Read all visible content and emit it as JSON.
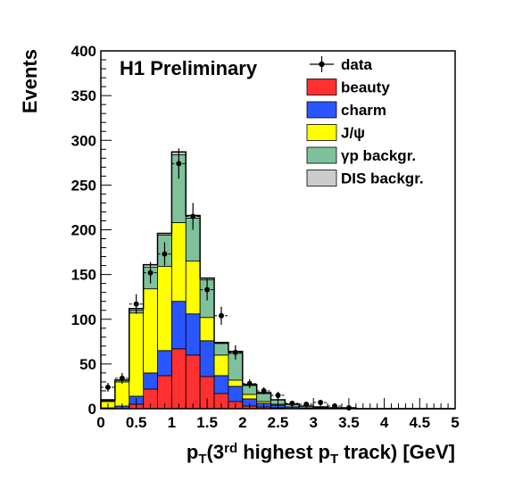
{
  "chart_data": {
    "type": "bar",
    "stacked": true,
    "title": "H1 Preliminary",
    "xlabel": {
      "parts": [
        {
          "t": "p",
          "s": "n"
        },
        {
          "t": "T",
          "s": "sub"
        },
        {
          "t": "(3",
          "s": "n"
        },
        {
          "t": "rd",
          "s": "sup"
        },
        {
          "t": " highest p",
          "s": "n"
        },
        {
          "t": "T",
          "s": "sub"
        },
        {
          "t": " track) [GeV]",
          "s": "n"
        }
      ]
    },
    "ylabel": "Events",
    "xlim": [
      0,
      5
    ],
    "ylim": [
      0,
      400
    ],
    "x_ticks": [
      "0",
      "0.5",
      "1",
      "1.5",
      "2",
      "2.5",
      "3",
      "3.5",
      "4",
      "4.5",
      "5"
    ],
    "y_ticks": [
      "0",
      "50",
      "100",
      "150",
      "200",
      "250",
      "300",
      "350",
      "400"
    ],
    "bin_width": 0.2,
    "bin_lows": [
      0.0,
      0.2,
      0.4,
      0.6,
      0.8,
      1.0,
      1.2,
      1.4,
      1.6,
      1.8,
      2.0,
      2.2,
      2.4,
      2.6,
      2.8,
      3.0,
      3.2,
      3.4,
      3.6,
      3.8,
      4.0,
      4.2,
      4.4,
      4.6,
      4.8
    ],
    "legend_position": "top-right",
    "stack_order": [
      "beauty",
      "charm",
      "jpsi",
      "gp",
      "dis"
    ],
    "legend": [
      {
        "key": "data",
        "label": "data",
        "kind": "marker"
      },
      {
        "key": "beauty",
        "label": "beauty",
        "kind": "box"
      },
      {
        "key": "charm",
        "label": "charm",
        "kind": "box"
      },
      {
        "key": "jpsi",
        "label": "J/ψ",
        "kind": "box"
      },
      {
        "key": "gp",
        "label": "γp backgr.",
        "kind": "box"
      },
      {
        "key": "dis",
        "label": "DIS backgr.",
        "kind": "box"
      }
    ],
    "series": [
      {
        "key": "beauty",
        "name": "beauty",
        "color": "#ff3030",
        "values": [
          0,
          0,
          5,
          22,
          37,
          67,
          60,
          36,
          17,
          8,
          3,
          2,
          1,
          0,
          0,
          0,
          0,
          0,
          0,
          0,
          0,
          0,
          0,
          0,
          0
        ]
      },
      {
        "key": "charm",
        "name": "charm",
        "color": "#2a56ff",
        "values": [
          1,
          3,
          9,
          18,
          28,
          53,
          46,
          40,
          20,
          17,
          8,
          4,
          3,
          2,
          1,
          1,
          0,
          0,
          0,
          0,
          0,
          0,
          0,
          0,
          0
        ]
      },
      {
        "key": "jpsi",
        "name": "J/ψ",
        "color": "#ffff00",
        "values": [
          7,
          27,
          93,
          94,
          94,
          88,
          59,
          26,
          23,
          7,
          5,
          2,
          1,
          0,
          0,
          0,
          0,
          0,
          0,
          0,
          0,
          0,
          0,
          0,
          0
        ]
      },
      {
        "key": "gp",
        "name": "γp backgr.",
        "color": "#7ec19b",
        "values": [
          1,
          2,
          3,
          24,
          35,
          76,
          48,
          42,
          13,
          30,
          10,
          9,
          5,
          3,
          2,
          1,
          1,
          1,
          0,
          0,
          0,
          0,
          0,
          0,
          0
        ]
      },
      {
        "key": "dis",
        "name": "DIS backgr.",
        "color": "#cccccc",
        "values": [
          1,
          0,
          2,
          3,
          2,
          3,
          3,
          2,
          1,
          2,
          1,
          1,
          0,
          0,
          0,
          0,
          0,
          0,
          0,
          0,
          0,
          0,
          0,
          0,
          0
        ]
      }
    ],
    "data_points": {
      "name": "data",
      "x": [
        0.1,
        0.3,
        0.5,
        0.7,
        0.9,
        1.1,
        1.3,
        1.5,
        1.7,
        1.9,
        2.1,
        2.3,
        2.5,
        2.7,
        2.9,
        3.1,
        3.3,
        3.5
      ],
      "y": [
        24,
        34,
        117,
        152,
        173,
        274,
        215,
        133,
        104,
        63,
        28,
        20,
        15,
        6,
        5,
        7,
        3,
        1
      ],
      "err": [
        5,
        6,
        11,
        12,
        13,
        17,
        15,
        12,
        10,
        8,
        5,
        4,
        4,
        2,
        2,
        3,
        2,
        1
      ]
    }
  }
}
